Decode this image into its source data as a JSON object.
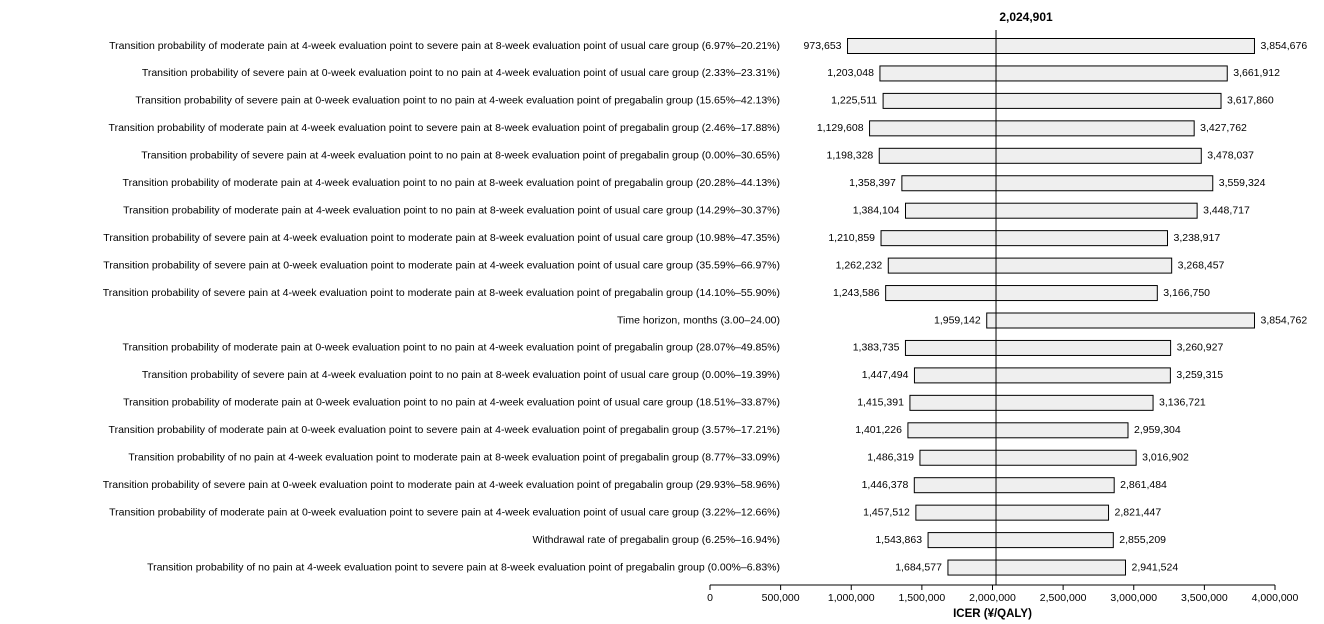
{
  "chart_data": {
    "type": "tornado",
    "base_value": 2024901,
    "base_label": "2,024,901",
    "xlabel": "ICER (¥/QALY)",
    "xlim": [
      0,
      4000000
    ],
    "x_ticks": [
      0,
      500000,
      1000000,
      1500000,
      2000000,
      2500000,
      3000000,
      3500000,
      4000000
    ],
    "x_tick_labels": [
      "0",
      "500,000",
      "1,000,000",
      "1,500,000",
      "2,000,000",
      "2,500,000",
      "3,000,000",
      "3,500,000",
      "4,000,000"
    ],
    "bars": [
      {
        "label": "Transition probability of moderate pain at 4-week evaluation point to severe pain at 8-week evaluation point of usual care group (6.97%–20.21%)",
        "low": 973653,
        "high": 3854676,
        "low_label": "973,653",
        "high_label": "3,854,676"
      },
      {
        "label": "Transition probability of severe pain at 0-week evaluation point to no pain at 4-week evaluation point of usual care group (2.33%–23.31%)",
        "low": 1203048,
        "high": 3661912,
        "low_label": "1,203,048",
        "high_label": "3,661,912"
      },
      {
        "label": "Transition probability of severe pain at 0-week evaluation point to no pain at 4-week evaluation point of pregabalin group (15.65%–42.13%)",
        "low": 1225511,
        "high": 3617860,
        "low_label": "1,225,511",
        "high_label": "3,617,860"
      },
      {
        "label": "Transition probability of moderate pain at 4-week evaluation point to severe pain at 8-week evaluation point of pregabalin group (2.46%–17.88%)",
        "low": 1129608,
        "high": 3427762,
        "low_label": "1,129,608",
        "high_label": "3,427,762"
      },
      {
        "label": "Transition probability of severe pain at 4-week evaluation point to no pain at 8-week evaluation point of pregabalin group (0.00%–30.65%)",
        "low": 1198328,
        "high": 3478037,
        "low_label": "1,198,328",
        "high_label": "3,478,037"
      },
      {
        "label": "Transition probability of moderate pain at 4-week evaluation point to no pain at 8-week evaluation point of pregabalin group (20.28%–44.13%)",
        "low": 1358397,
        "high": 3559324,
        "low_label": "1,358,397",
        "high_label": "3,559,324"
      },
      {
        "label": "Transition probability of moderate pain at 4-week evaluation point to no pain at 8-week evaluation point of usual care group (14.29%–30.37%)",
        "low": 1384104,
        "high": 3448717,
        "low_label": "1,384,104",
        "high_label": "3,448,717"
      },
      {
        "label": "Transition probability of severe pain at 4-week evaluation point to moderate pain at 8-week evaluation point of usual care group (10.98%–47.35%)",
        "low": 1210859,
        "high": 3238917,
        "low_label": "1,210,859",
        "high_label": "3,238,917"
      },
      {
        "label": "Transition probability of severe pain at 0-week evaluation point to moderate pain at 4-week evaluation point of usual care group (35.59%–66.97%)",
        "low": 1262232,
        "high": 3268457,
        "low_label": "1,262,232",
        "high_label": "3,268,457"
      },
      {
        "label": "Transition probability of severe pain at 4-week evaluation point to moderate pain at 8-week evaluation point of pregabalin group (14.10%–55.90%)",
        "low": 1243586,
        "high": 3166750,
        "low_label": "1,243,586",
        "high_label": "3,166,750"
      },
      {
        "label": "Time horizon, months (3.00–24.00)",
        "low": 1959142,
        "high": 3854762,
        "low_label": "1,959,142",
        "high_label": "3,854,762"
      },
      {
        "label": "Transition probability of moderate pain at 0-week evaluation point to no pain at 4-week evaluation point of pregabalin group (28.07%–49.85%)",
        "low": 1383735,
        "high": 3260927,
        "low_label": "1,383,735",
        "high_label": "3,260,927"
      },
      {
        "label": "Transition probability of severe pain at 4-week evaluation point to no pain at 8-week evaluation point of usual care group (0.00%–19.39%)",
        "low": 1447494,
        "high": 3259315,
        "low_label": "1,447,494",
        "high_label": "3,259,315"
      },
      {
        "label": "Transition probability of moderate pain at 0-week evaluation point to no pain at 4-week evaluation point of usual care group (18.51%–33.87%)",
        "low": 1415391,
        "high": 3136721,
        "low_label": "1,415,391",
        "high_label": "3,136,721"
      },
      {
        "label": "Transition probability of moderate pain at 0-week evaluation point to severe pain at 4-week evaluation point of pregabalin group (3.57%–17.21%)",
        "low": 1401226,
        "high": 2959304,
        "low_label": "1,401,226",
        "high_label": "2,959,304"
      },
      {
        "label": "Transition probability of no pain at 4-week evaluation point to moderate pain at 8-week evaluation point of pregabalin group (8.77%–33.09%)",
        "low": 1486319,
        "high": 3016902,
        "low_label": "1,486,319",
        "high_label": "3,016,902"
      },
      {
        "label": "Transition probability of severe pain at 0-week evaluation point to moderate pain at 4-week evaluation point of pregabalin group (29.93%–58.96%)",
        "low": 1446378,
        "high": 2861484,
        "low_label": "1,446,378",
        "high_label": "2,861,484"
      },
      {
        "label": "Transition probability of moderate pain at 0-week evaluation point to severe pain at 4-week evaluation point of usual care group (3.22%–12.66%)",
        "low": 1457512,
        "high": 2821447,
        "low_label": "1,457,512",
        "high_label": "2,821,447"
      },
      {
        "label": "Withdrawal rate of pregabalin group (6.25%–16.94%)",
        "low": 1543863,
        "high": 2855209,
        "low_label": "1,543,863",
        "high_label": "2,855,209"
      },
      {
        "label": "Transition probability of no pain at 4-week evaluation point to severe pain at 8-week evaluation point of pregabalin group (0.00%–6.83%)",
        "low": 1684577,
        "high": 2941524,
        "low_label": "1,684,577",
        "high_label": "2,941,524"
      }
    ],
    "bar_fill": "#efefef",
    "bar_stroke": "#000000",
    "grid": false,
    "legend": "none"
  }
}
